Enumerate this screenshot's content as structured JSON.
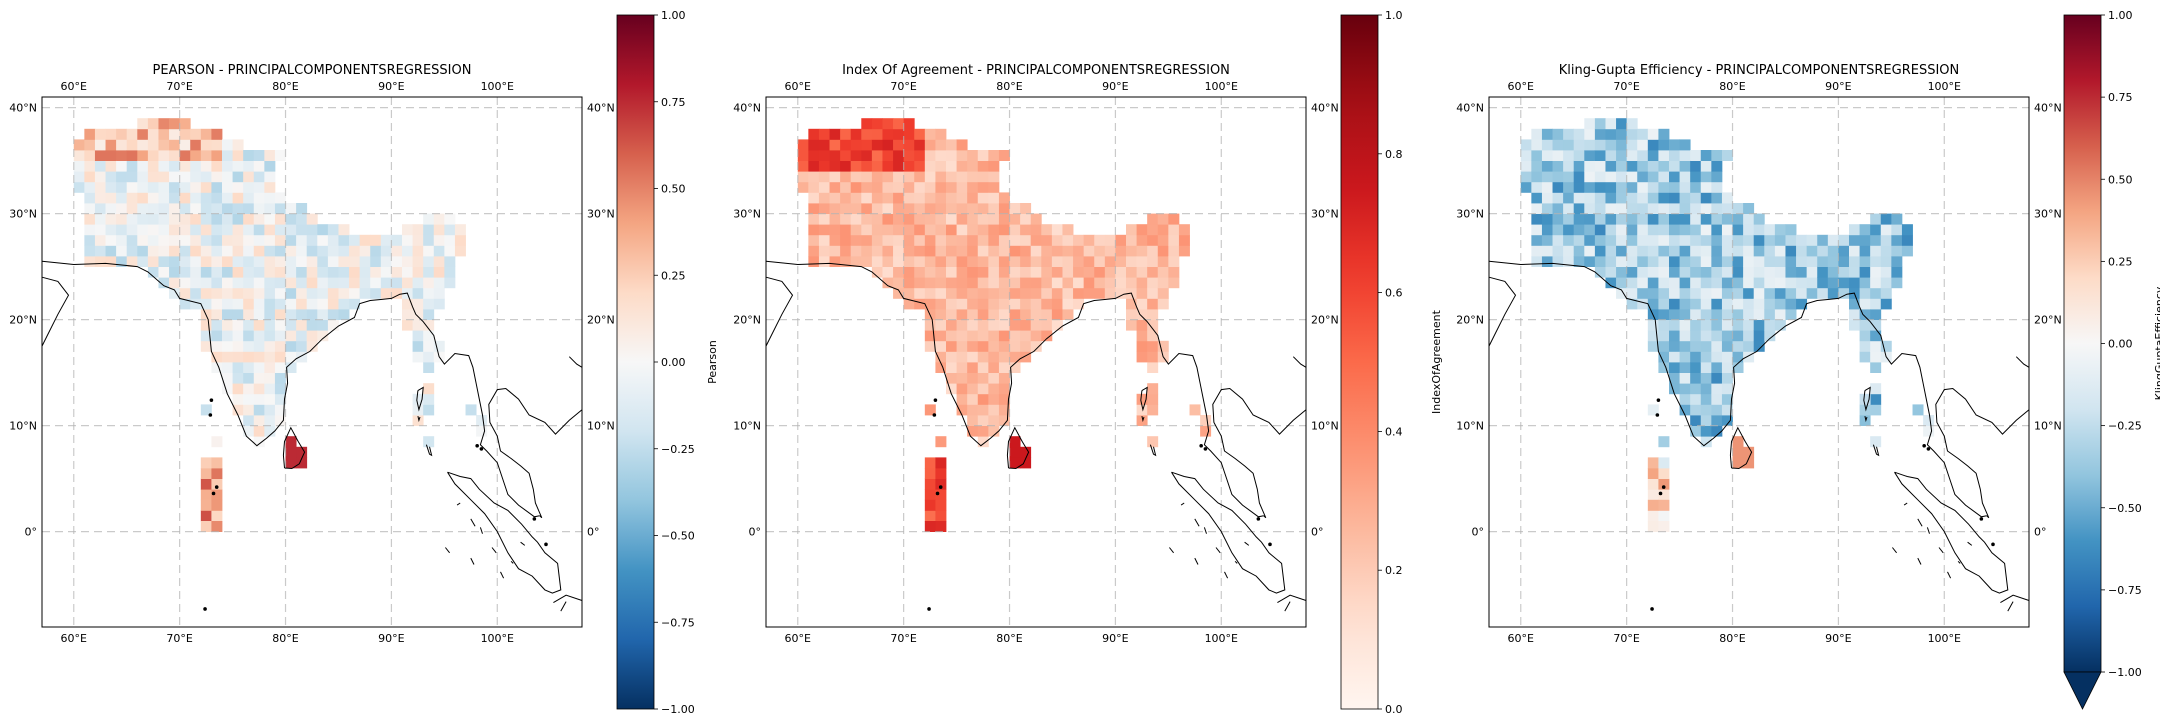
{
  "panels": [
    {
      "title": "PEARSON - PRINCIPALCOMPONENTSREGRESSION",
      "cbar_label": "Pearson",
      "cmap": "RdBu_r",
      "vmin": -1,
      "vmax": 1,
      "cbar_ticks": [
        "1.00",
        "0.75",
        "0.50",
        "0.25",
        "0.00",
        "−0.25",
        "−0.50",
        "−0.75",
        "−1.00"
      ],
      "cbar_extend": "none",
      "bias": -0.05,
      "spread": 0.25,
      "sri_lanka_value": 0.75
    },
    {
      "title": "Index Of Agreement - PRINCIPALCOMPONENTSREGRESSION",
      "cbar_label": "IndexOfAgreement",
      "cmap": "Reds",
      "vmin": 0,
      "vmax": 1,
      "cbar_ticks": [
        "1.0",
        "0.8",
        "0.6",
        "0.4",
        "0.2",
        "0.0"
      ],
      "cbar_extend": "none",
      "bias": 0.25,
      "spread": 0.12,
      "sri_lanka_value": 0.75
    },
    {
      "title": "Kling-Gupta Efficiency - PRINCIPALCOMPONENTSREGRESSION",
      "cbar_label": "KlingGuptaEfficiency",
      "cmap": "RdBu_r",
      "vmin": -1,
      "vmax": 1,
      "cbar_ticks": [
        "1.00",
        "0.75",
        "0.50",
        "0.25",
        "0.00",
        "−0.25",
        "−0.50",
        "−0.75",
        "−1.00"
      ],
      "cbar_extend": "min",
      "bias": -0.35,
      "spread": 0.3,
      "sri_lanka_value": 0.45
    }
  ],
  "map_extent": {
    "lon": [
      57,
      108
    ],
    "lat": [
      -9,
      41
    ]
  },
  "lon_ticks": [
    60,
    70,
    80,
    90,
    100
  ],
  "lat_ticks": [
    0,
    10,
    20,
    30,
    40
  ],
  "lon_tick_labels": [
    "60°E",
    "70°E",
    "80°E",
    "90°E",
    "100°E"
  ],
  "lat_tick_labels": [
    "0°",
    "10°N",
    "20°N",
    "30°N",
    "40°N"
  ],
  "grid": true
}
